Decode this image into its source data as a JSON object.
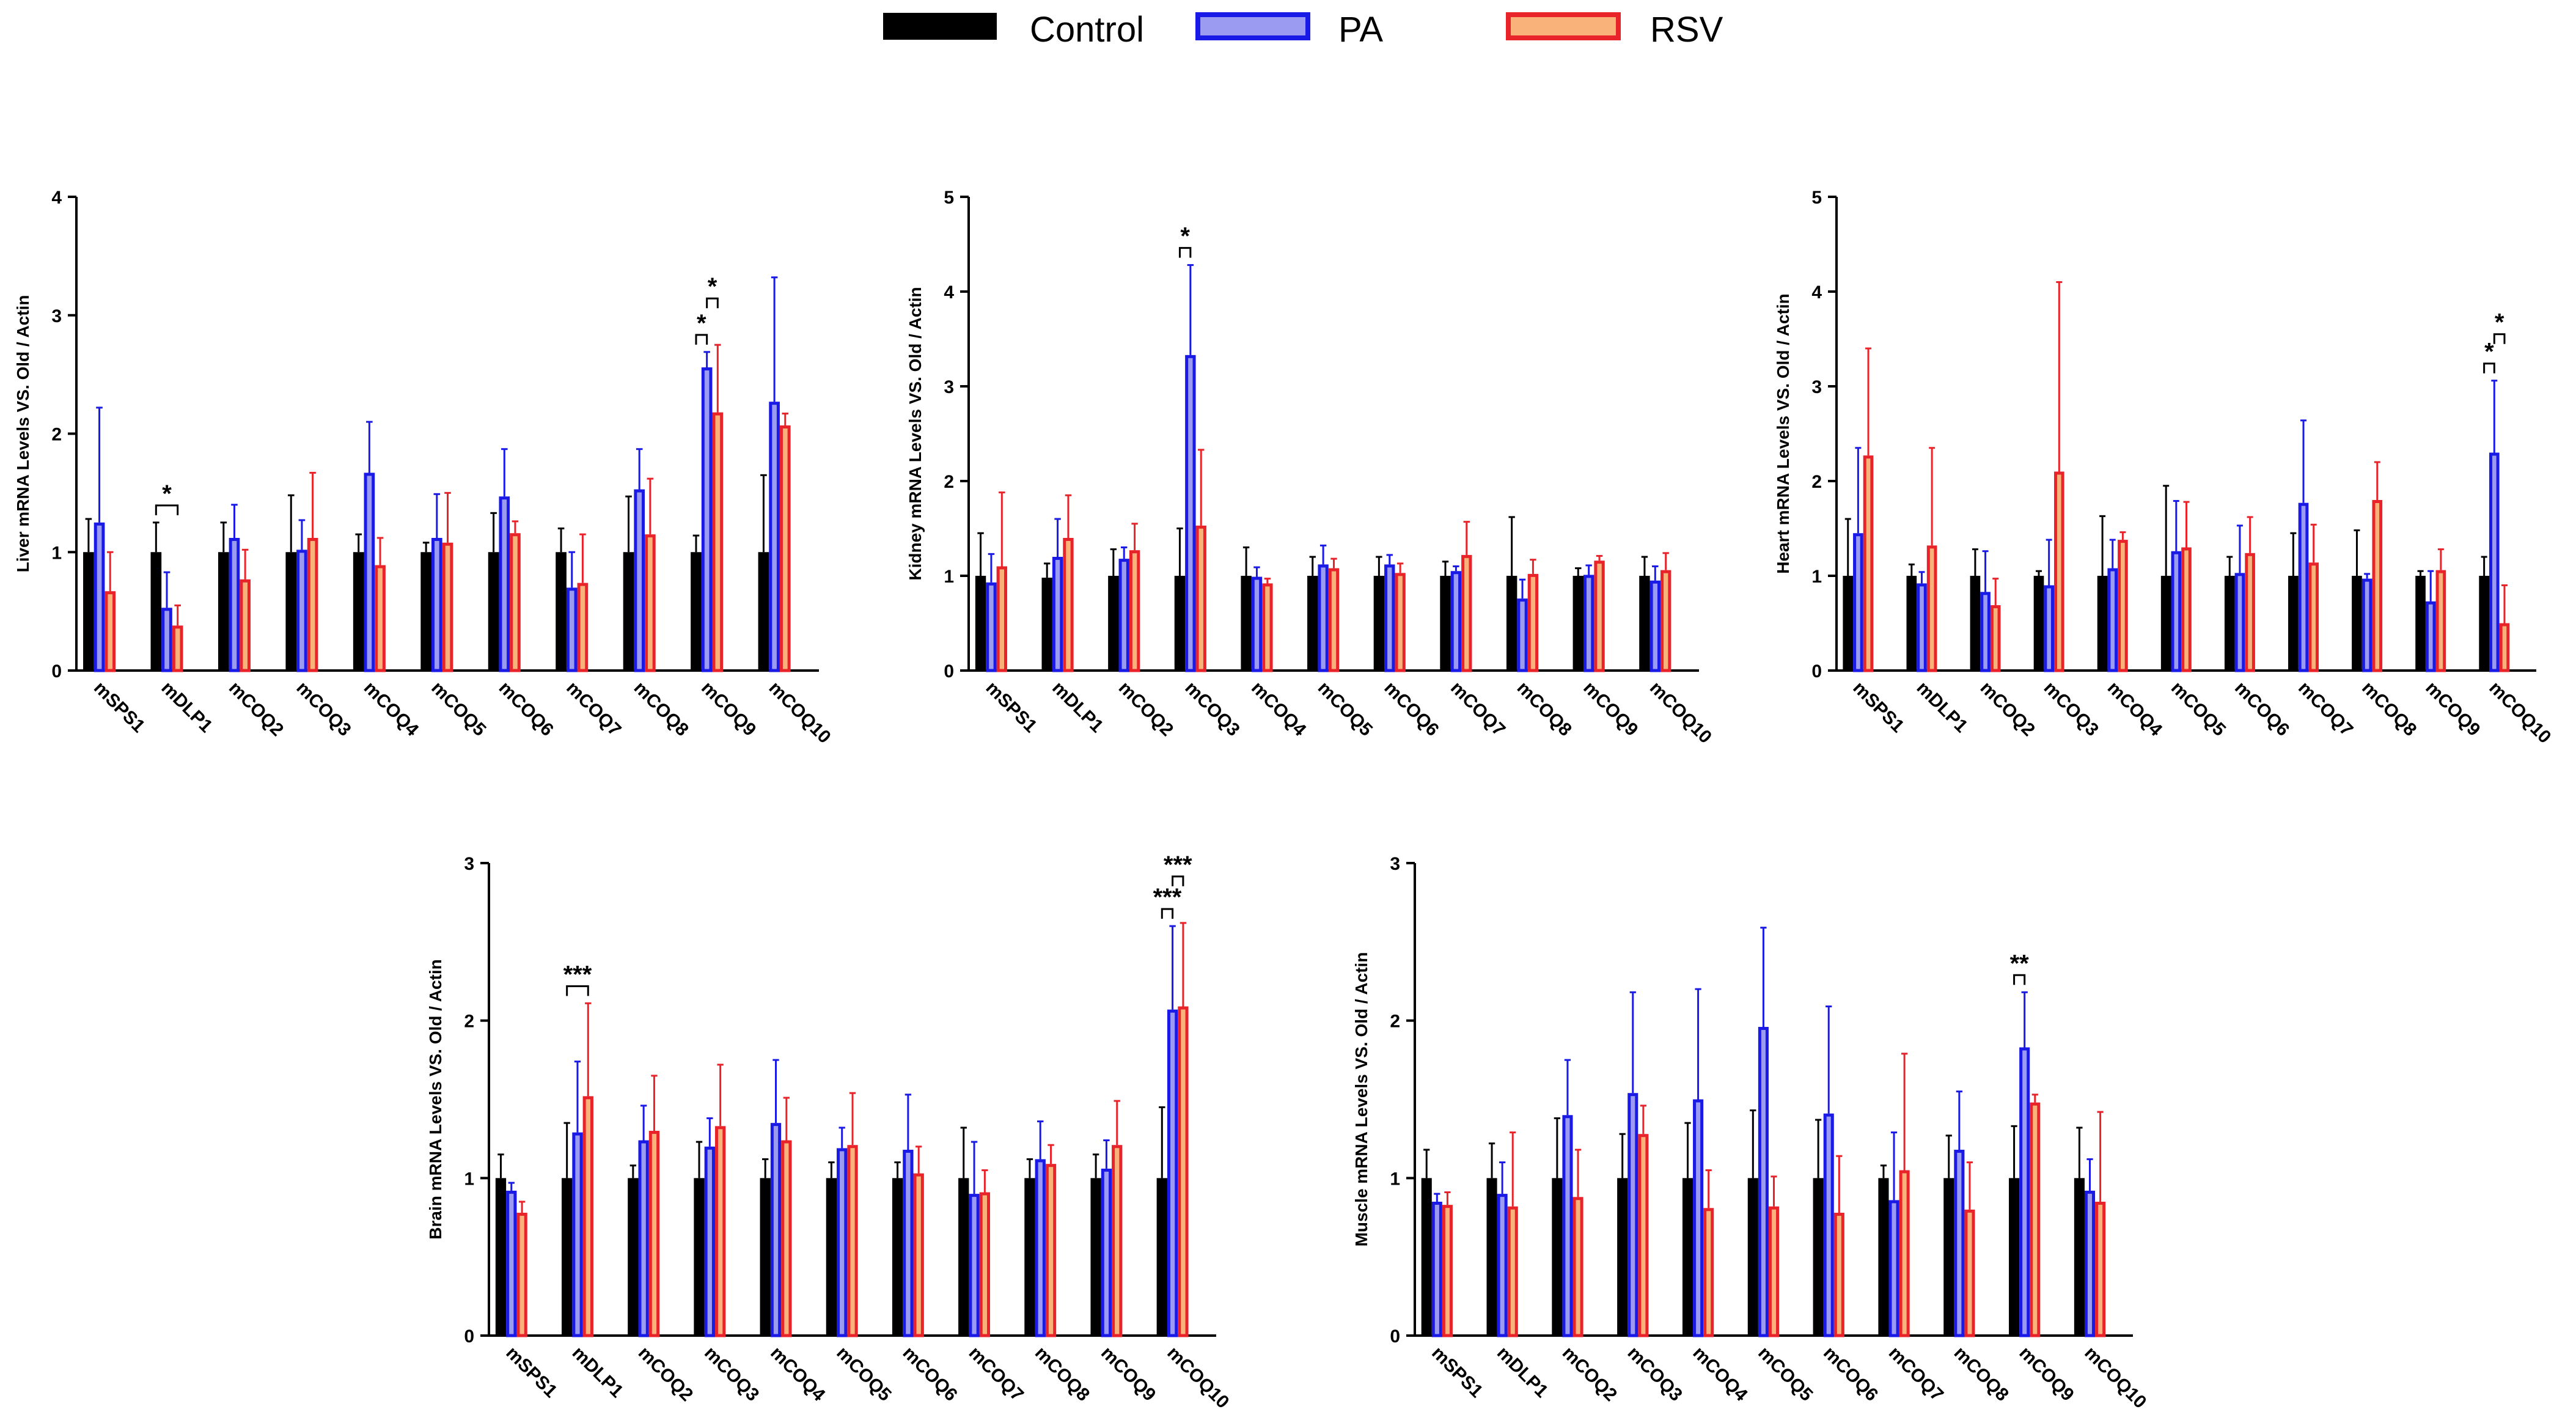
{
  "legend": [
    {
      "name": "Control",
      "fill": "#000000",
      "stroke": "#000000"
    },
    {
      "name": "PA",
      "fill": "#9b9bf2",
      "stroke": "#1a1ae6"
    },
    {
      "name": "RSV",
      "fill": "#f9b27a",
      "stroke": "#e8242a"
    }
  ],
  "colors": {
    "control": "#000000",
    "pa_fill": "#9b9bf2",
    "pa_stroke": "#1a1ae6",
    "pa_err": "#1a1ae6",
    "rsv_fill": "#f9b27a",
    "rsv_stroke": "#e8242a",
    "rsv_err": "#e8242a"
  },
  "chart_data": [
    {
      "type": "bar",
      "title": "",
      "ylabel": "Liver mRNA Levels VS. Old / Actin",
      "ylim": [
        0,
        4
      ],
      "yticks": [
        0,
        1,
        2,
        3,
        4
      ],
      "categories": [
        "mSPS1",
        "mDLP1",
        "mCOQ2",
        "mCOQ3",
        "mCOQ4",
        "mCOQ5",
        "mCOQ6",
        "mCOQ7",
        "mCOQ8",
        "mCOQ9",
        "mCOQ10"
      ],
      "series": [
        {
          "name": "Control",
          "values": [
            1.0,
            1.0,
            1.0,
            1.0,
            1.0,
            1.0,
            1.0,
            1.0,
            1.0,
            1.0,
            1.0
          ],
          "errors": [
            0.28,
            0.25,
            0.25,
            0.48,
            0.15,
            0.08,
            0.33,
            0.2,
            0.47,
            0.14,
            0.65
          ]
        },
        {
          "name": "PA",
          "values": [
            1.25,
            0.53,
            1.12,
            1.02,
            1.67,
            1.12,
            1.47,
            0.7,
            1.53,
            2.56,
            2.27
          ],
          "errors": [
            0.97,
            0.3,
            0.28,
            0.25,
            0.43,
            0.37,
            0.4,
            0.3,
            0.34,
            0.13,
            1.05
          ]
        },
        {
          "name": "RSV",
          "values": [
            0.67,
            0.38,
            0.77,
            1.12,
            0.89,
            1.08,
            1.16,
            0.74,
            1.15,
            2.18,
            2.07
          ],
          "errors": [
            0.33,
            0.17,
            0.25,
            0.55,
            0.23,
            0.42,
            0.1,
            0.41,
            0.47,
            0.57,
            0.1
          ]
        }
      ],
      "significance": [
        {
          "label": "*",
          "category": "mDLP1",
          "from": "Control",
          "to": "RSV",
          "level": 1
        },
        {
          "label": "*",
          "category": "mCOQ9",
          "from": "Control",
          "to": "PA",
          "level": 1
        },
        {
          "label": "*",
          "category": "mCOQ9",
          "from": "PA",
          "to": "RSV",
          "level": 2
        }
      ]
    },
    {
      "type": "bar",
      "title": "",
      "ylabel": "Kidney mRNA Levels VS. Old / Actin",
      "ylim": [
        0,
        5
      ],
      "yticks": [
        0,
        1,
        2,
        3,
        4,
        5
      ],
      "categories": [
        "mSPS1",
        "mDLP1",
        "mCOQ2",
        "mCOQ3",
        "mCOQ4",
        "mCOQ5",
        "mCOQ6",
        "mCOQ7",
        "mCOQ8",
        "mCOQ9",
        "mCOQ10"
      ],
      "series": [
        {
          "name": "Control",
          "values": [
            1.0,
            0.98,
            1.0,
            1.0,
            1.0,
            1.0,
            1.0,
            1.0,
            1.0,
            1.0,
            1.0
          ],
          "errors": [
            0.45,
            0.15,
            0.28,
            0.5,
            0.3,
            0.2,
            0.2,
            0.15,
            0.62,
            0.08,
            0.2
          ]
        },
        {
          "name": "PA",
          "values": [
            0.93,
            1.2,
            1.18,
            3.33,
            0.99,
            1.12,
            1.12,
            1.05,
            0.76,
            1.01,
            0.95
          ],
          "errors": [
            0.3,
            0.4,
            0.12,
            0.95,
            0.1,
            0.2,
            0.1,
            0.05,
            0.2,
            0.1,
            0.15
          ]
        },
        {
          "name": "RSV",
          "values": [
            1.1,
            1.4,
            1.27,
            1.53,
            0.92,
            1.08,
            1.03,
            1.22,
            1.02,
            1.16,
            1.06
          ],
          "errors": [
            0.78,
            0.45,
            0.28,
            0.8,
            0.05,
            0.1,
            0.1,
            0.35,
            0.15,
            0.05,
            0.18
          ]
        }
      ],
      "significance": [
        {
          "label": "*",
          "category": "mCOQ3",
          "from": "Control",
          "to": "PA",
          "level": 1
        }
      ]
    },
    {
      "type": "bar",
      "title": "",
      "ylabel": "Heart mRNA Levels VS. Old / Actin",
      "ylim": [
        0,
        5
      ],
      "yticks": [
        0,
        1,
        2,
        3,
        4,
        5
      ],
      "categories": [
        "mSPS1",
        "mDLP1",
        "mCOQ2",
        "mCOQ3",
        "mCOQ4",
        "mCOQ5",
        "mCOQ6",
        "mCOQ7",
        "mCOQ8",
        "mCOQ9",
        "mCOQ10"
      ],
      "series": [
        {
          "name": "Control",
          "values": [
            1.0,
            1.0,
            1.0,
            1.0,
            1.0,
            1.0,
            1.0,
            1.0,
            1.0,
            1.0,
            1.0
          ],
          "errors": [
            0.6,
            0.12,
            0.28,
            0.05,
            0.63,
            0.95,
            0.2,
            0.45,
            0.48,
            0.05,
            0.2
          ]
        },
        {
          "name": "PA",
          "values": [
            1.45,
            0.92,
            0.83,
            0.9,
            1.08,
            1.26,
            1.03,
            1.77,
            0.97,
            0.73,
            2.3
          ],
          "errors": [
            0.9,
            0.12,
            0.43,
            0.48,
            0.3,
            0.53,
            0.5,
            0.87,
            0.05,
            0.32,
            0.76
          ]
        },
        {
          "name": "RSV",
          "values": [
            2.27,
            1.32,
            0.69,
            2.1,
            1.38,
            1.3,
            1.24,
            1.14,
            1.8,
            1.06,
            0.5
          ],
          "errors": [
            1.13,
            1.03,
            0.28,
            2.0,
            0.08,
            0.48,
            0.38,
            0.4,
            0.4,
            0.22,
            0.4
          ]
        }
      ],
      "significance": [
        {
          "label": "*",
          "category": "mCOQ10",
          "from": "Control",
          "to": "PA",
          "level": 1
        },
        {
          "label": "*",
          "category": "mCOQ10",
          "from": "PA",
          "to": "RSV",
          "level": 2
        }
      ]
    },
    {
      "type": "bar",
      "title": "",
      "ylabel": "Brain mRNA Levels VS. Old / Actin",
      "ylim": [
        0,
        3
      ],
      "yticks": [
        0,
        1,
        2,
        3
      ],
      "categories": [
        "mSPS1",
        "mDLP1",
        "mCOQ2",
        "mCOQ3",
        "mCOQ4",
        "mCOQ5",
        "mCOQ6",
        "mCOQ7",
        "mCOQ8",
        "mCOQ9",
        "mCOQ10"
      ],
      "series": [
        {
          "name": "Control",
          "values": [
            1.0,
            1.0,
            1.0,
            1.0,
            1.0,
            1.0,
            1.0,
            1.0,
            1.0,
            1.0,
            1.0
          ],
          "errors": [
            0.15,
            0.35,
            0.08,
            0.23,
            0.12,
            0.1,
            0.1,
            0.32,
            0.12,
            0.15,
            0.45
          ]
        },
        {
          "name": "PA",
          "values": [
            0.92,
            1.29,
            1.24,
            1.2,
            1.35,
            1.19,
            1.18,
            0.9,
            1.12,
            1.06,
            2.07
          ],
          "errors": [
            0.05,
            0.45,
            0.22,
            0.18,
            0.4,
            0.13,
            0.35,
            0.33,
            0.24,
            0.18,
            0.53
          ]
        },
        {
          "name": "RSV",
          "values": [
            0.78,
            1.52,
            1.3,
            1.33,
            1.24,
            1.21,
            1.03,
            0.91,
            1.09,
            1.21,
            2.09
          ],
          "errors": [
            0.07,
            0.59,
            0.35,
            0.39,
            0.27,
            0.33,
            0.17,
            0.14,
            0.12,
            0.28,
            0.53
          ]
        }
      ],
      "significance": [
        {
          "label": "***",
          "category": "mDLP1",
          "from": "Control",
          "to": "RSV",
          "level": 1
        },
        {
          "label": "***",
          "category": "mCOQ10",
          "from": "Control",
          "to": "PA",
          "level": 1
        },
        {
          "label": "***",
          "category": "mCOQ10",
          "from": "PA",
          "to": "RSV",
          "level": 2
        }
      ]
    },
    {
      "type": "bar",
      "title": "",
      "ylabel": "Muscle mRNA Levels VS. Old / Actin",
      "ylim": [
        0,
        3
      ],
      "yticks": [
        0,
        1,
        2,
        3
      ],
      "categories": [
        "mSPS1",
        "mDLP1",
        "mCOQ2",
        "mCOQ3",
        "mCOQ4",
        "mCOQ5",
        "mCOQ6",
        "mCOQ7",
        "mCOQ8",
        "mCOQ9",
        "mCOQ10"
      ],
      "series": [
        {
          "name": "Control",
          "values": [
            1.0,
            1.0,
            1.0,
            1.0,
            1.0,
            1.0,
            1.0,
            1.0,
            1.0,
            1.0,
            1.0
          ],
          "errors": [
            0.18,
            0.22,
            0.38,
            0.28,
            0.35,
            0.43,
            0.37,
            0.08,
            0.27,
            0.33,
            0.32
          ]
        },
        {
          "name": "PA",
          "values": [
            0.85,
            0.9,
            1.4,
            1.54,
            1.5,
            1.96,
            1.41,
            0.86,
            1.18,
            1.83,
            0.92
          ],
          "errors": [
            0.05,
            0.2,
            0.35,
            0.64,
            0.7,
            0.63,
            0.68,
            0.43,
            0.37,
            0.35,
            0.2
          ]
        },
        {
          "name": "RSV",
          "values": [
            0.83,
            0.82,
            0.88,
            1.28,
            0.81,
            0.82,
            0.78,
            1.05,
            0.8,
            1.48,
            0.85
          ],
          "errors": [
            0.08,
            0.47,
            0.3,
            0.18,
            0.24,
            0.19,
            0.36,
            0.74,
            0.3,
            0.05,
            0.57
          ]
        }
      ],
      "significance": [
        {
          "label": "**",
          "category": "mCOQ9",
          "from": "Control",
          "to": "PA",
          "level": 1
        }
      ]
    }
  ]
}
